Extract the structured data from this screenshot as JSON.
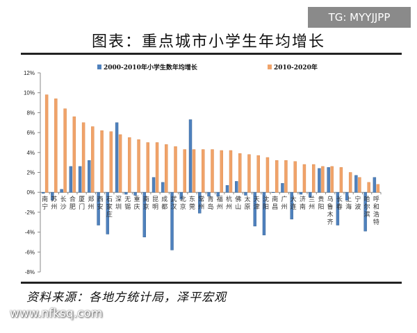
{
  "watermarks": {
    "tg": "TG: MYYJJPP",
    "site": "www.nfksq.com"
  },
  "footer": {
    "source": "资料来源：各地方统计局，泽平宏观"
  },
  "chart_data": {
    "type": "bar",
    "title": "图表：重点城市小学生年均增长",
    "xlabel": "",
    "ylabel": "",
    "ylim": [
      -8,
      12
    ],
    "yticks": [
      -8,
      -6,
      -4,
      -2,
      0,
      2,
      4,
      6,
      8,
      10,
      12
    ],
    "ytick_format": "%",
    "legend": "top",
    "grid": false,
    "categories": [
      "南宁",
      "苏州",
      "长沙",
      "合肥",
      "厦门",
      "郑州",
      "西安",
      "石家庄",
      "深圳",
      "无锡",
      "重庆",
      "南京",
      "昆明",
      "成都",
      "武汉",
      "北京",
      "东莞",
      "常州",
      "青岛",
      "福州",
      "杭州",
      "佛山",
      "太原",
      "天津",
      "沈阳",
      "南昌",
      "广州",
      "大连",
      "济南",
      "兰州",
      "贵阳",
      "乌鲁木齐",
      "长春",
      "上海",
      "宁波",
      "哈尔滨",
      "呼和浩特"
    ],
    "series": [
      {
        "name": "2000-2010年小学生数年均增长",
        "color": "#4f81bd",
        "values": [
          -0.1,
          -0.8,
          0.3,
          2.6,
          2.6,
          3.2,
          -3.3,
          -4.2,
          7.0,
          -0.2,
          -0.3,
          -4.5,
          1.5,
          1.0,
          -5.8,
          -0.7,
          7.3,
          -2.1,
          -0.4,
          -0.4,
          0.7,
          1.1,
          -0.3,
          -3.4,
          -4.3,
          0.0,
          0.9,
          -2.7,
          -0.2,
          -0.5,
          2.4,
          2.5,
          -3.3,
          -0.8,
          1.7,
          -3.9,
          1.5
        ]
      },
      {
        "name": "2010-2020年",
        "color": "#f0a36a",
        "values": [
          9.8,
          9.4,
          8.4,
          7.6,
          7.0,
          6.6,
          6.2,
          6.1,
          5.8,
          5.5,
          5.3,
          5.0,
          5.0,
          4.8,
          4.6,
          4.3,
          4.3,
          4.3,
          4.3,
          4.2,
          4.2,
          3.9,
          3.8,
          3.7,
          3.5,
          3.2,
          3.2,
          3.1,
          2.8,
          2.8,
          2.6,
          2.6,
          2.5,
          2.0,
          1.5,
          1.0,
          0.8
        ]
      }
    ]
  }
}
